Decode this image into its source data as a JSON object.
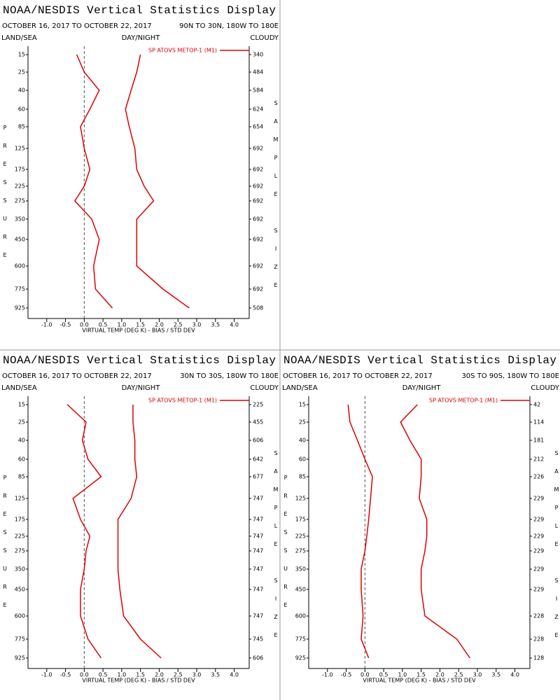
{
  "chart_data": [
    {
      "type": "profile",
      "title": "NOAA/NESDIS Vertical Statistics Display",
      "subtitle": "OCTOBER 16, 2017 TO OCTOBER 22, 2017",
      "region": "90N TO 30N, 180W TO 180E",
      "header_left": "LAND/SEA",
      "header_center": "DAY/NIGHT",
      "header_right": "CLOUDY",
      "ylabel": "PRESSURE",
      "y2label": "SAMPLE SIZE",
      "xlabel": "VIRTUAL TEMP (DEG K) - BIAS / STD DEV",
      "categories": [
        15,
        25,
        40,
        60,
        85,
        125,
        175,
        225,
        275,
        350,
        450,
        600,
        775,
        925
      ],
      "sample_size": [
        340,
        484,
        584,
        624,
        654,
        692,
        692,
        692,
        692,
        692,
        692,
        692,
        692,
        508
      ],
      "series": [
        {
          "name": "SP ATOVS METOP-1 (M1)",
          "color": "#dd0000",
          "bias": [
            -0.2,
            0.0,
            0.4,
            0.15,
            -0.1,
            0.0,
            0.15,
            0.0,
            -0.25,
            0.2,
            0.4,
            0.25,
            0.3,
            0.75
          ],
          "std_dev": [
            1.5,
            1.4,
            1.25,
            1.1,
            1.2,
            1.35,
            1.4,
            1.6,
            1.85,
            1.4,
            1.4,
            1.4,
            2.1,
            2.8
          ]
        }
      ],
      "xlim": [
        -1.5,
        4.4
      ],
      "xticks": [
        {
          "value": -1,
          "label": "-1.0"
        },
        {
          "value": -0.5,
          "label": "-0.5"
        },
        {
          "value": 0,
          "label": "0.0"
        },
        {
          "value": 0.5,
          "label": "0.5"
        },
        {
          "value": 1,
          "label": "1.0"
        },
        {
          "value": 1.5,
          "label": "1.5"
        },
        {
          "value": 2,
          "label": "2.0"
        },
        {
          "value": 2.5,
          "label": "2.5"
        },
        {
          "value": 3,
          "label": "3.0"
        },
        {
          "value": 3.5,
          "label": "3.5"
        },
        {
          "value": 4,
          "label": "4.0"
        }
      ]
    },
    {
      "type": "profile",
      "title": "NOAA/NESDIS Vertical Statistics Display",
      "subtitle": "OCTOBER 16, 2017 TO OCTOBER 22, 2017",
      "region": "30N TO 30S, 180W TO 180E",
      "header_left": "LAND/SEA",
      "header_center": "DAY/NIGHT",
      "header_right": "CLOUDY",
      "ylabel": "PRESSURE",
      "y2label": "SAMPLE SIZE",
      "xlabel": "VIRTUAL TEMP (DEG K) - BIAS / STD DEV",
      "categories": [
        15,
        25,
        40,
        60,
        85,
        125,
        175,
        225,
        275,
        350,
        450,
        600,
        775,
        925
      ],
      "sample_size": [
        225,
        455,
        606,
        642,
        677,
        747,
        747,
        747,
        747,
        747,
        747,
        747,
        745,
        606
      ],
      "series": [
        {
          "name": "SP ATOVS METOP-1 (M1)",
          "color": "#dd0000",
          "bias": [
            -0.45,
            0.05,
            -0.05,
            0.1,
            0.45,
            -0.3,
            -0.1,
            0.15,
            0.05,
            0.0,
            -0.1,
            -0.1,
            0.1,
            0.45
          ],
          "std_dev": [
            1.3,
            1.3,
            1.35,
            1.35,
            1.4,
            1.25,
            0.9,
            0.9,
            0.9,
            0.9,
            0.95,
            1.05,
            1.5,
            2.05
          ]
        }
      ],
      "xlim": [
        -1.5,
        4.4
      ],
      "xticks": [
        {
          "value": -1,
          "label": "-1.0"
        },
        {
          "value": -0.5,
          "label": "-0.5"
        },
        {
          "value": 0,
          "label": "0.0"
        },
        {
          "value": 0.5,
          "label": "0.5"
        },
        {
          "value": 1,
          "label": "1.0"
        },
        {
          "value": 1.5,
          "label": "1.5"
        },
        {
          "value": 2,
          "label": "2.0"
        },
        {
          "value": 2.5,
          "label": "2.5"
        },
        {
          "value": 3,
          "label": "3.0"
        },
        {
          "value": 3.5,
          "label": "3.5"
        },
        {
          "value": 4,
          "label": "4.0"
        }
      ]
    },
    {
      "type": "profile",
      "title": "NOAA/NESDIS Vertical Statistics Display",
      "subtitle": "OCTOBER 16, 2017 TO OCTOBER 22, 2017",
      "region": "30S TO 90S, 180W TO 180E",
      "header_left": "LAND/SEA",
      "header_center": "DAY/NIGHT",
      "header_right": "CLOUDY",
      "ylabel": "PRESSURE",
      "y2label": "SAMPLE SIZE",
      "xlabel": "VIRTUAL TEMP (DEG K) - BIAS / STD DEV",
      "categories": [
        15,
        25,
        40,
        60,
        85,
        125,
        175,
        225,
        275,
        350,
        450,
        600,
        775,
        925
      ],
      "sample_size": [
        42,
        114,
        181,
        212,
        226,
        229,
        229,
        229,
        229,
        229,
        229,
        228,
        228,
        128
      ],
      "series": [
        {
          "name": "SP ATOVS METOP-1 (M1)",
          "color": "#dd0000",
          "bias": [
            -0.45,
            -0.4,
            -0.2,
            0.0,
            0.2,
            0.15,
            0.1,
            0.05,
            0.0,
            -0.1,
            -0.1,
            -0.05,
            -0.1,
            0.1
          ],
          "std_dev": [
            1.4,
            0.95,
            1.2,
            1.5,
            1.5,
            1.45,
            1.65,
            1.65,
            1.6,
            1.5,
            1.5,
            1.6,
            2.45,
            2.8
          ]
        }
      ],
      "xlim": [
        -1.5,
        4.4
      ],
      "xticks": [
        {
          "value": -1,
          "label": "-1.0"
        },
        {
          "value": -0.5,
          "label": "-0.5"
        },
        {
          "value": 0,
          "label": "0.0"
        },
        {
          "value": 0.5,
          "label": "0.5"
        },
        {
          "value": 1,
          "label": "1.0"
        },
        {
          "value": 1.5,
          "label": "1.5"
        },
        {
          "value": 2,
          "label": "2.0"
        },
        {
          "value": 2.5,
          "label": "2.5"
        },
        {
          "value": 3,
          "label": "3.0"
        },
        {
          "value": 3.5,
          "label": "3.5"
        },
        {
          "value": 4,
          "label": "4.0"
        }
      ]
    }
  ]
}
